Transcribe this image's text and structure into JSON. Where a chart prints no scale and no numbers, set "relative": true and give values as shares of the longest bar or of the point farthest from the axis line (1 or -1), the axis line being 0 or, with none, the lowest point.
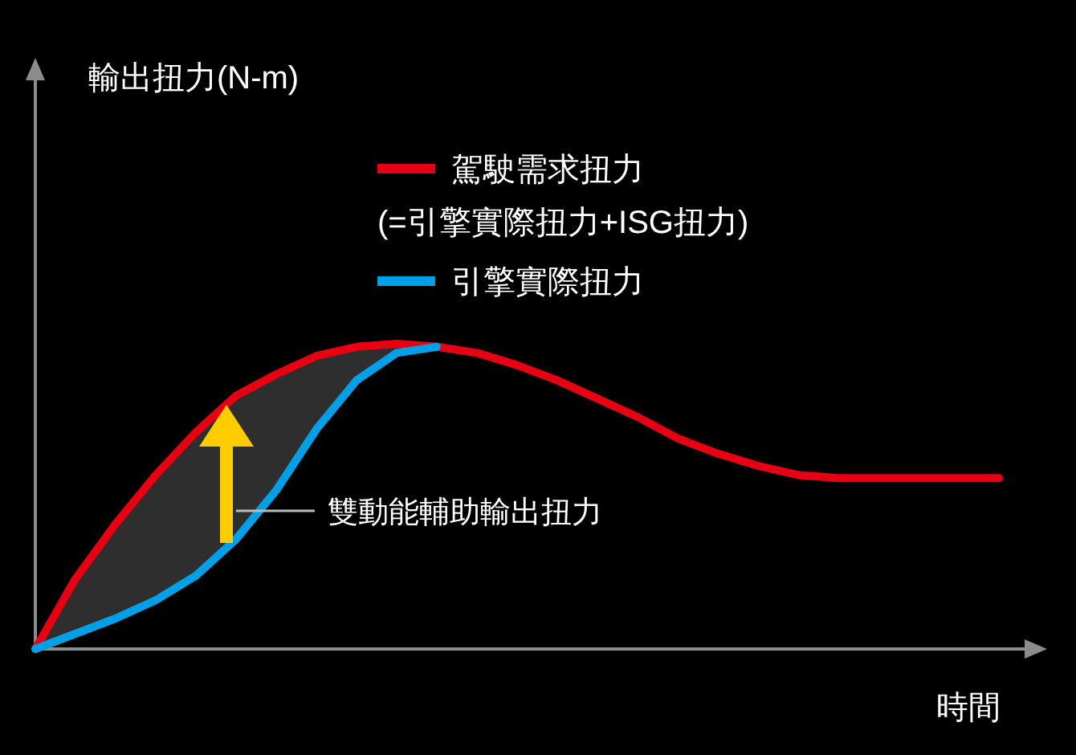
{
  "chart_data": {
    "type": "line",
    "relative": true,
    "xlabel": "時間",
    "legend": "top",
    "categories": [
      null,
      null,
      null,
      null,
      null,
      null,
      null,
      null,
      null,
      null,
      null,
      null,
      null,
      null,
      null,
      null,
      null,
      null,
      null,
      null,
      null,
      null,
      null,
      null,
      null
    ],
    "series": [
      {
        "name": "駕駛需求扭力\n(=引擎實際扭力+ISG扭力)",
        "color": "#e60012",
        "values": [
          0,
          0.23,
          0.41,
          0.57,
          0.71,
          0.83,
          0.9,
          0.96,
          0.99,
          1,
          0.99,
          0.97,
          0.93,
          0.88,
          0.82,
          0.76,
          0.69,
          0.64,
          0.6,
          0.57,
          0.56,
          0.56,
          0.56,
          0.56,
          0.56
        ],
        "lower": [
          0,
          0.05,
          0.1,
          0.16,
          0.24,
          0.36,
          0.52,
          0.72,
          0.88,
          0.97,
          0.99,
          null,
          null,
          null,
          null,
          null,
          null,
          null,
          null,
          null,
          null,
          null,
          null,
          null,
          null
        ],
        "upper": [
          0,
          0.23,
          0.41,
          0.57,
          0.71,
          0.83,
          0.9,
          0.96,
          0.99,
          1,
          0.99,
          null,
          null,
          null,
          null,
          null,
          null,
          null,
          null,
          null,
          null,
          null,
          null,
          null,
          null
        ]
      },
      {
        "name": "引擎實際扭力",
        "color": "#00a0e9",
        "values": [
          0,
          0.05,
          0.1,
          0.16,
          0.24,
          0.36,
          0.52,
          0.72,
          0.88,
          0.97,
          0.99,
          null,
          null,
          null,
          null,
          null,
          null,
          null,
          null,
          null,
          null,
          null,
          null,
          null,
          null
        ]
      }
    ],
    "annotations": [
      "輸出扭力(N-m)",
      "雙動能輔助輸出扭力"
    ]
  }
}
